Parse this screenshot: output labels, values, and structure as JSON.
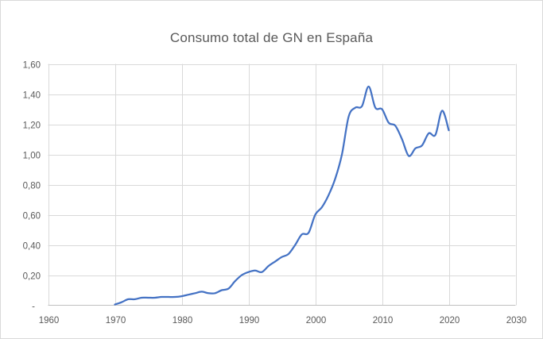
{
  "chart": {
    "title": "Consumo total de GN en España",
    "colors": {
      "line": "#4472C4",
      "gridline": "#D9D9D9",
      "axis_line": "#BFBFBF",
      "text": "#595959",
      "background": "#FFFFFF",
      "frame_border": "#D9D9D9"
    }
  },
  "chart_data": {
    "type": "line",
    "title": "Consumo total de GN en España",
    "xlabel": "",
    "ylabel": "",
    "xlim": [
      1960,
      2030
    ],
    "ylim": [
      0,
      1.6
    ],
    "x_ticks": [
      1960,
      1970,
      1980,
      1990,
      2000,
      2010,
      2020,
      2030
    ],
    "x_tick_labels": [
      "1960",
      "1970",
      "1980",
      "1990",
      "2000",
      "2010",
      "2020",
      "2030"
    ],
    "y_ticks": [
      0,
      0.2,
      0.4,
      0.6,
      0.8,
      1.0,
      1.2,
      1.4,
      1.6
    ],
    "y_tick_labels": [
      "-",
      "0,20",
      "0,40",
      "0,60",
      "0,80",
      "1,00",
      "1,20",
      "1,40",
      "1,60"
    ],
    "grid": true,
    "legend": false,
    "smooth_line": true,
    "series": [
      {
        "name": "Consumo total de GN",
        "color": "#4472C4",
        "x": [
          1970,
          1971,
          1972,
          1973,
          1974,
          1975,
          1976,
          1977,
          1978,
          1979,
          1980,
          1981,
          1982,
          1983,
          1984,
          1985,
          1986,
          1987,
          1988,
          1989,
          1990,
          1991,
          1992,
          1993,
          1994,
          1995,
          1996,
          1997,
          1998,
          1999,
          2000,
          2001,
          2002,
          2003,
          2004,
          2005,
          2006,
          2007,
          2008,
          2009,
          2010,
          2011,
          2012,
          2013,
          2014,
          2015,
          2016,
          2017,
          2018,
          2019,
          2020
        ],
        "y": [
          0.005,
          0.02,
          0.04,
          0.04,
          0.05,
          0.05,
          0.05,
          0.055,
          0.055,
          0.055,
          0.06,
          0.07,
          0.08,
          0.09,
          0.08,
          0.08,
          0.1,
          0.11,
          0.16,
          0.2,
          0.22,
          0.23,
          0.22,
          0.26,
          0.29,
          0.32,
          0.34,
          0.4,
          0.47,
          0.48,
          0.6,
          0.65,
          0.73,
          0.84,
          1.0,
          1.25,
          1.31,
          1.32,
          1.45,
          1.31,
          1.3,
          1.21,
          1.19,
          1.1,
          0.99,
          1.04,
          1.06,
          1.14,
          1.13,
          1.29,
          1.16
        ]
      }
    ]
  }
}
